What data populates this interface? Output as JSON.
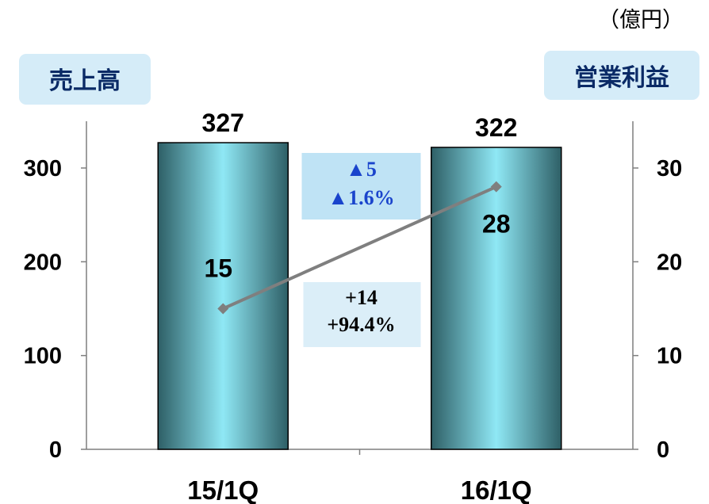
{
  "unit_label": "（億円）",
  "colors": {
    "bar_dark": "#2e5f66",
    "bar_light": "#8fe8f5",
    "line": "#7f7f7f",
    "title_box": "#d5ecf8",
    "sales_change_box": "#bfe3f5",
    "profit_change_box": "#dbeef8",
    "change_negative_text": "#1a44cc"
  },
  "chart_data": {
    "type": "bar",
    "categories": [
      "15/1Q",
      "16/1Q"
    ],
    "series": [
      {
        "name": "売上高",
        "type": "bar",
        "axis": "left",
        "values": [
          327,
          322
        ],
        "labels": [
          "327",
          "322"
        ]
      },
      {
        "name": "営業利益",
        "type": "line",
        "axis": "right",
        "values": [
          15,
          28
        ],
        "labels": [
          "15",
          "28"
        ]
      }
    ],
    "y_left": {
      "title": "売上高",
      "ylim": [
        0,
        300
      ],
      "ticks": [
        0,
        100,
        200,
        300
      ]
    },
    "y_right": {
      "title": "営業利益",
      "ylim": [
        0,
        30
      ],
      "ticks": [
        0,
        10,
        20,
        30
      ]
    },
    "annotations": {
      "sales_change": [
        "▲5",
        "▲1.6%"
      ],
      "profit_change": [
        "+14",
        "+94.4%"
      ]
    },
    "grid": false
  }
}
